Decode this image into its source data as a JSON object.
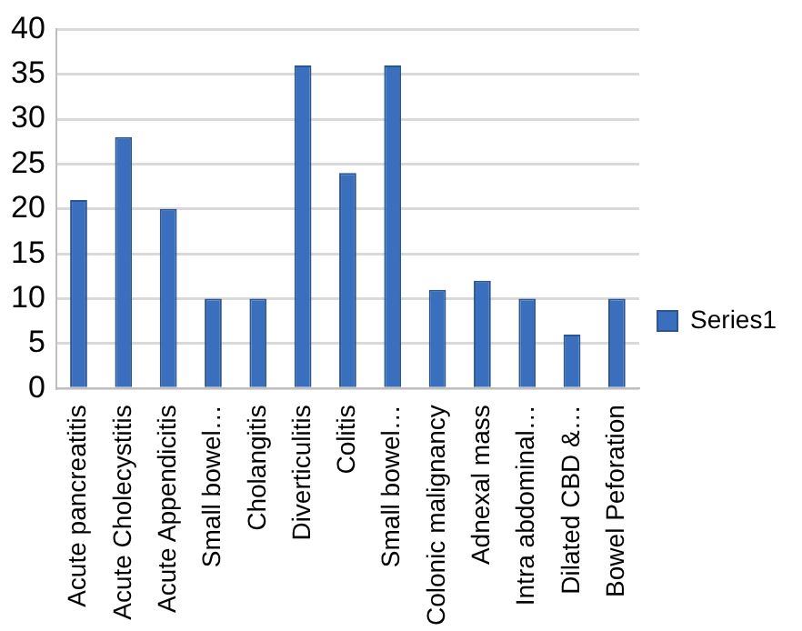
{
  "chart_data": {
    "type": "bar",
    "categories": [
      "Acute pancreatitis",
      "Acute Cholecystitis",
      "Acute Appendicitis",
      "Small bowel…",
      "Cholangitis",
      "Diverticulitis",
      "Colitis",
      "Small bowel…",
      "Colonic malignancy",
      "Adnexal mass",
      "Intra abdominal…",
      "Dilated CBD &…",
      "Bowel Peforation"
    ],
    "series": [
      {
        "name": "Series1",
        "color": "#3a6fbd",
        "values": [
          21,
          28,
          20,
          10,
          10,
          36,
          24,
          36,
          11,
          12,
          10,
          6,
          10
        ]
      }
    ],
    "ylim": [
      0,
      40
    ],
    "yticks": [
      0,
      5,
      10,
      15,
      20,
      25,
      30,
      35,
      40
    ],
    "grid": "y",
    "legend": "right"
  }
}
